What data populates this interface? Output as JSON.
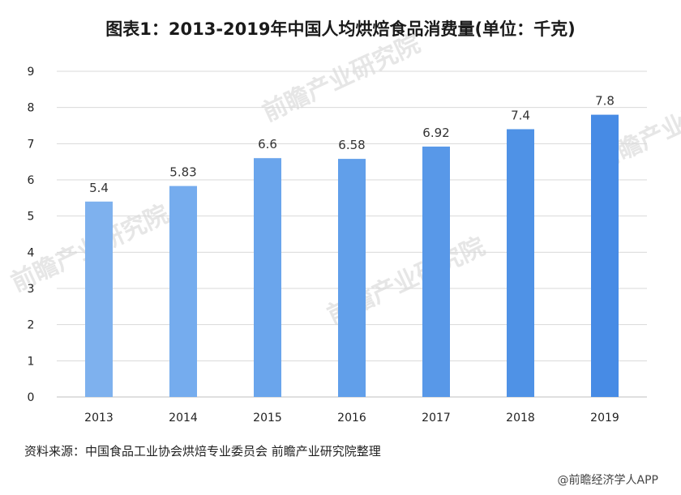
{
  "chart_data": {
    "type": "bar",
    "title": "图表1：2013-2019年中国人均烘焙食品消费量(单位：千克)",
    "categories": [
      "2013",
      "2014",
      "2015",
      "2016",
      "2017",
      "2018",
      "2019"
    ],
    "values": [
      5.4,
      5.83,
      6.6,
      6.58,
      6.92,
      7.4,
      7.8
    ],
    "data_labels": [
      "5.4",
      "5.83",
      "6.6",
      "6.58",
      "6.92",
      "7.4",
      "7.8"
    ],
    "ylim": [
      0,
      9
    ],
    "yticks": [
      0,
      1,
      2,
      3,
      4,
      5,
      6,
      7,
      8,
      9
    ],
    "xlabel": "",
    "ylabel": "",
    "grid": true,
    "colors": [
      "#7eb1ee",
      "#75acee",
      "#6aa5ec",
      "#619fea",
      "#5898e8",
      "#4f92e6",
      "#478be5"
    ]
  },
  "source": "资料来源：中国食品工业协会烘焙专业委员会 前瞻产业研究院整理",
  "credit": "@前瞻经济学人APP",
  "watermark": "前瞻产业研究院"
}
